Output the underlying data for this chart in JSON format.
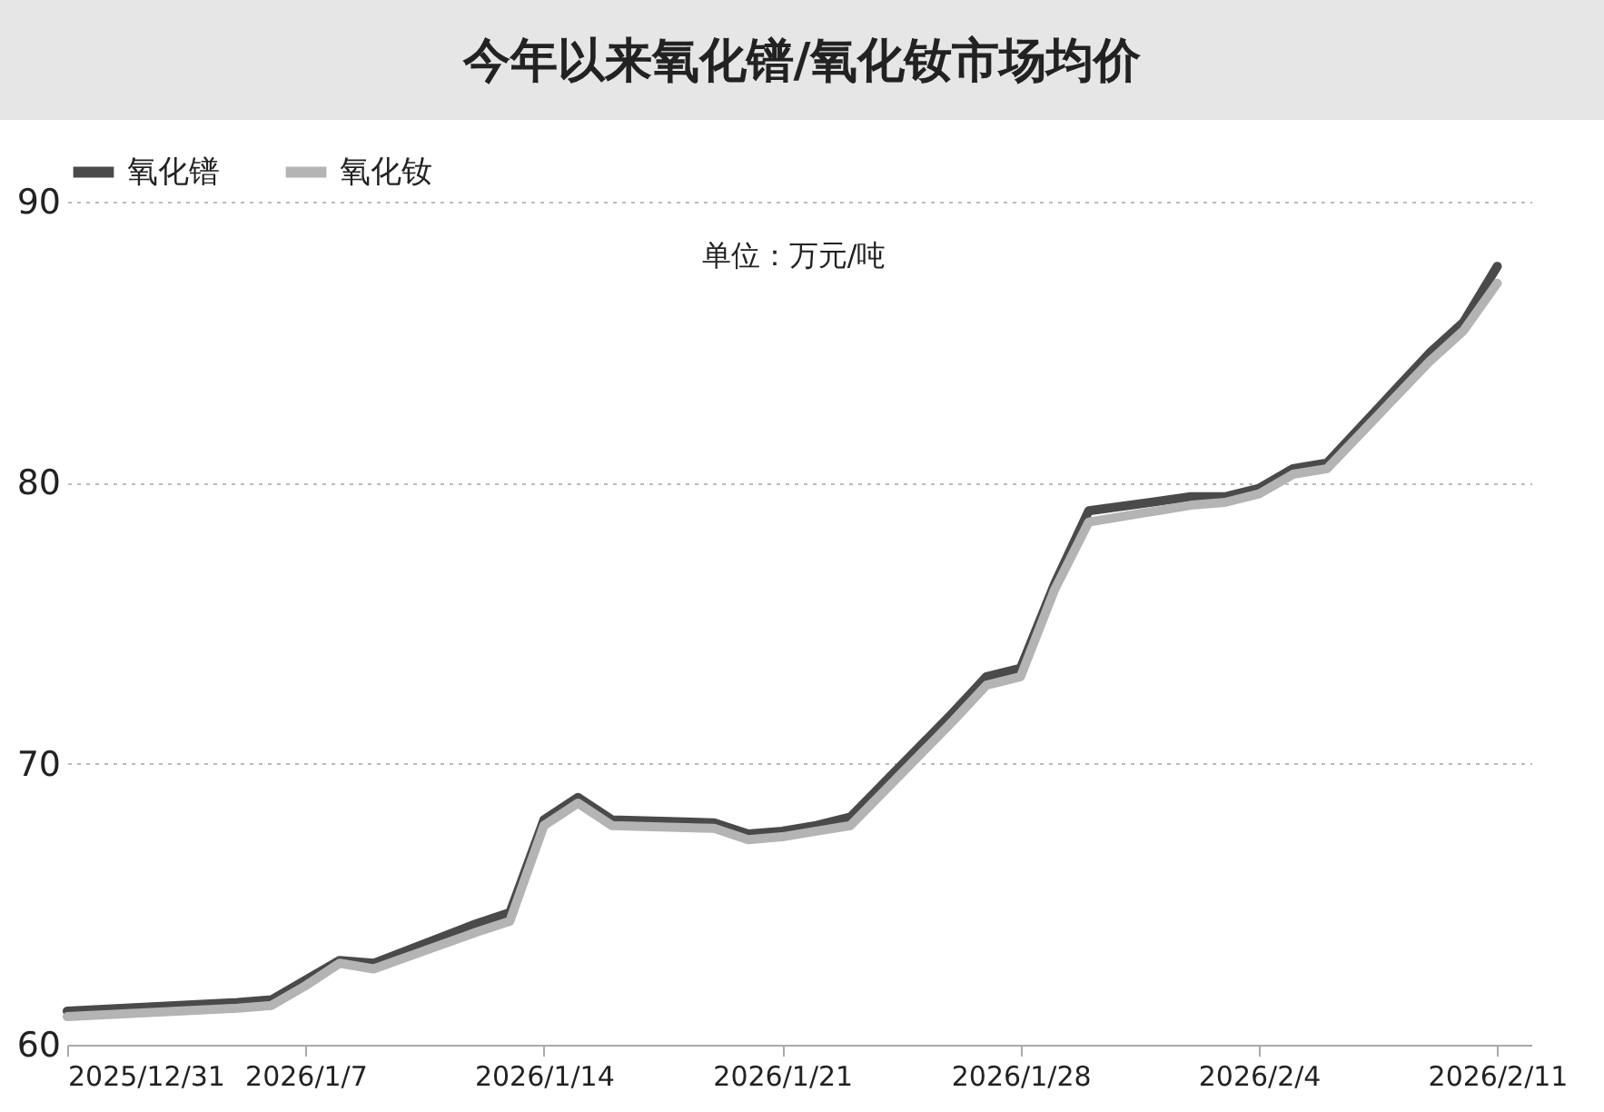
{
  "chart_data": {
    "type": "line",
    "title": "今年以来氧化镨/氧化钕市场均价",
    "x": [
      "2025-12-31",
      "2026-01-05",
      "2026-01-06",
      "2026-01-07",
      "2026-01-08",
      "2026-01-09",
      "2026-01-12",
      "2026-01-13",
      "2026-01-14",
      "2026-01-15",
      "2026-01-16",
      "2026-01-19",
      "2026-01-20",
      "2026-01-21",
      "2026-01-22",
      "2026-01-23",
      "2026-01-26",
      "2026-01-27",
      "2026-01-28",
      "2026-01-29",
      "2026-01-30",
      "2026-02-02",
      "2026-02-03",
      "2026-02-04",
      "2026-02-05",
      "2026-02-06",
      "2026-02-09",
      "2026-02-10",
      "2026-02-11"
    ],
    "series": [
      {
        "name": "氧化镨",
        "color": "#4a4a4a",
        "values": [
          61.2,
          61.5,
          61.6,
          62.3,
          63.0,
          62.9,
          64.3,
          64.7,
          68.0,
          68.8,
          68.0,
          67.9,
          67.5,
          67.6,
          67.8,
          68.1,
          71.8,
          73.1,
          73.4,
          76.4,
          79.0,
          79.5,
          79.5,
          79.8,
          80.5,
          80.7,
          84.6,
          85.7,
          87.7
        ]
      },
      {
        "name": "氧化钕",
        "color": "#b4b4b4",
        "values": [
          61.0,
          61.3,
          61.4,
          62.1,
          62.9,
          62.7,
          64.0,
          64.4,
          67.8,
          68.6,
          67.8,
          67.7,
          67.3,
          67.4,
          67.6,
          67.8,
          71.5,
          72.8,
          73.1,
          76.2,
          78.6,
          79.2,
          79.3,
          79.6,
          80.3,
          80.5,
          84.3,
          85.4,
          87.1
        ]
      }
    ],
    "xlim": [
      "2025-12-31",
      "2026-02-12"
    ],
    "xticks": [
      {
        "value": "2025-12-31",
        "label": "2025/12/31"
      },
      {
        "value": "2026-01-07",
        "label": "2026/1/7"
      },
      {
        "value": "2026-01-14",
        "label": "2026/1/14"
      },
      {
        "value": "2026-01-21",
        "label": "2026/1/21"
      },
      {
        "value": "2026-01-28",
        "label": "2026/1/28"
      },
      {
        "value": "2026-02-04",
        "label": "2026/2/4"
      },
      {
        "value": "2026-02-11",
        "label": "2026/2/11"
      }
    ],
    "ylim": [
      60,
      90
    ],
    "yticks": [
      60,
      70,
      80,
      90
    ],
    "grid": "y",
    "legend": "top",
    "marker": "none",
    "line_style": "solid",
    "annotations": [
      "单位：万元/吨"
    ]
  }
}
